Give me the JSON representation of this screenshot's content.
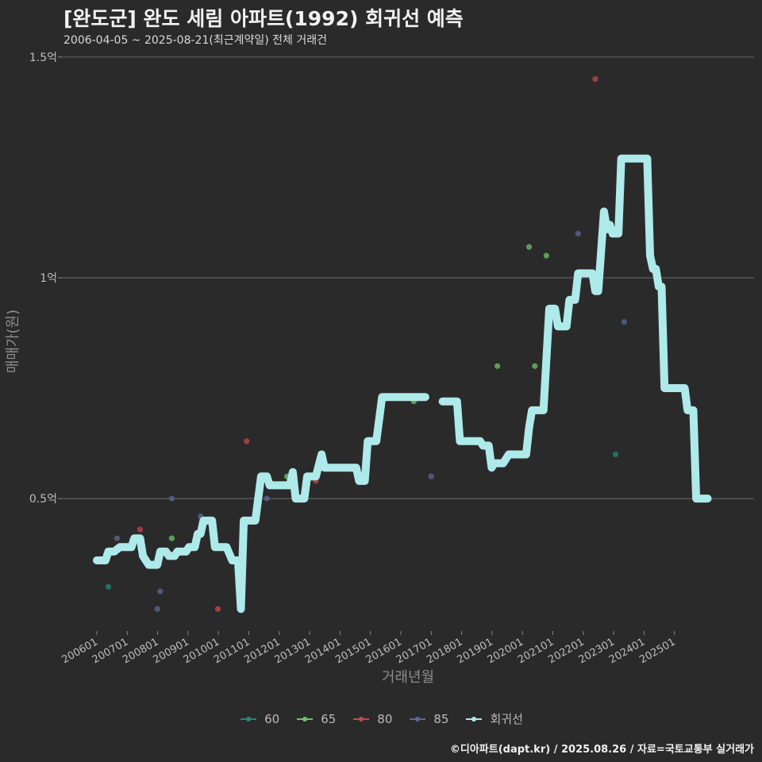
{
  "chart_data": {
    "type": "line",
    "title": "[완도군] 완도 세림 아파트(1992) 회귀선 예측",
    "subtitle": "2006-04-05 ~ 2025-08-21(최근계약일) 전체 거래건",
    "xlabel": "거래년월",
    "ylabel": "매매가(원)",
    "caption": "©디아파트(dapt.kr) / 2025.08.26 / 자료=국토교통부 실거래가",
    "ylim": [
      0.2,
      1.55
    ],
    "xlim": [
      2006.0,
      2026.8
    ],
    "y_ticks": [
      {
        "v": 0.5,
        "label": "0.5억"
      },
      {
        "v": 1.0,
        "label": "1억"
      },
      {
        "v": 1.5,
        "label": "1.5억"
      }
    ],
    "x_ticks": [
      "200601",
      "200701",
      "200801",
      "200901",
      "201001",
      "201101",
      "201201",
      "201301",
      "201401",
      "201501",
      "201601",
      "201701",
      "201801",
      "201901",
      "202001",
      "202101",
      "202201",
      "202301",
      "202401",
      "202501"
    ],
    "legend": [
      {
        "name": "60",
        "color": "#1f8a7a"
      },
      {
        "name": "65",
        "color": "#6cc46a"
      },
      {
        "name": "80",
        "color": "#c8474f"
      },
      {
        "name": "85",
        "color": "#5d6894"
      },
      {
        "name": "회귀선",
        "color": "#aeeaea"
      }
    ],
    "points": [
      {
        "x": 2006.4,
        "y": 0.3,
        "s": "60"
      },
      {
        "x": 2006.7,
        "y": 0.41,
        "s": "85"
      },
      {
        "x": 2007.5,
        "y": 0.43,
        "s": "80"
      },
      {
        "x": 2008.1,
        "y": 0.25,
        "s": "85"
      },
      {
        "x": 2008.2,
        "y": 0.29,
        "s": "85"
      },
      {
        "x": 2008.6,
        "y": 0.5,
        "s": "85"
      },
      {
        "x": 2008.6,
        "y": 0.41,
        "s": "65"
      },
      {
        "x": 2009.6,
        "y": 0.46,
        "s": "85"
      },
      {
        "x": 2010.2,
        "y": 0.25,
        "s": "80"
      },
      {
        "x": 2011.1,
        "y": 0.42,
        "s": "85"
      },
      {
        "x": 2011.2,
        "y": 0.63,
        "s": "80"
      },
      {
        "x": 2011.9,
        "y": 0.5,
        "s": "85"
      },
      {
        "x": 2012.6,
        "y": 0.55,
        "s": "65"
      },
      {
        "x": 2013.6,
        "y": 0.54,
        "s": "80"
      },
      {
        "x": 2017.0,
        "y": 0.72,
        "s": "65"
      },
      {
        "x": 2017.6,
        "y": 0.55,
        "s": "85"
      },
      {
        "x": 2019.9,
        "y": 0.8,
        "s": "65"
      },
      {
        "x": 2021.0,
        "y": 1.07,
        "s": "65"
      },
      {
        "x": 2021.2,
        "y": 0.8,
        "s": "65"
      },
      {
        "x": 2021.6,
        "y": 1.05,
        "s": "65"
      },
      {
        "x": 2022.7,
        "y": 1.1,
        "s": "85"
      },
      {
        "x": 2023.3,
        "y": 1.45,
        "s": "80"
      },
      {
        "x": 2024.0,
        "y": 0.6,
        "s": "60"
      },
      {
        "x": 2024.3,
        "y": 0.9,
        "s": "85"
      }
    ],
    "regression": [
      [
        [
          2006.0,
          0.36
        ],
        [
          2006.3,
          0.36
        ],
        [
          2006.4,
          0.38
        ],
        [
          2006.6,
          0.38
        ],
        [
          2006.8,
          0.39
        ],
        [
          2007.2,
          0.39
        ],
        [
          2007.3,
          0.41
        ],
        [
          2007.5,
          0.41
        ],
        [
          2007.6,
          0.37
        ],
        [
          2007.8,
          0.35
        ],
        [
          2008.1,
          0.35
        ],
        [
          2008.2,
          0.38
        ],
        [
          2008.4,
          0.38
        ],
        [
          2008.5,
          0.37
        ],
        [
          2008.7,
          0.37
        ],
        [
          2008.8,
          0.38
        ],
        [
          2009.1,
          0.38
        ],
        [
          2009.2,
          0.39
        ],
        [
          2009.4,
          0.39
        ],
        [
          2009.5,
          0.42
        ],
        [
          2009.6,
          0.42
        ],
        [
          2009.7,
          0.45
        ],
        [
          2010.0,
          0.45
        ],
        [
          2010.1,
          0.39
        ],
        [
          2010.5,
          0.39
        ],
        [
          2010.7,
          0.36
        ],
        [
          2010.9,
          0.36
        ],
        [
          2011.0,
          0.25
        ],
        [
          2011.1,
          0.45
        ],
        [
          2011.5,
          0.45
        ],
        [
          2011.7,
          0.55
        ],
        [
          2011.9,
          0.55
        ],
        [
          2012.0,
          0.53
        ],
        [
          2012.7,
          0.53
        ],
        [
          2012.8,
          0.56
        ],
        [
          2012.9,
          0.5
        ],
        [
          2013.2,
          0.5
        ],
        [
          2013.3,
          0.55
        ],
        [
          2013.6,
          0.55
        ],
        [
          2013.8,
          0.6
        ],
        [
          2013.9,
          0.57
        ],
        [
          2015.0,
          0.57
        ],
        [
          2015.1,
          0.54
        ],
        [
          2015.3,
          0.54
        ],
        [
          2015.4,
          0.63
        ],
        [
          2015.7,
          0.63
        ],
        [
          2015.9,
          0.73
        ],
        [
          2017.4,
          0.73
        ]
      ],
      [
        [
          2018.0,
          0.72
        ],
        [
          2018.5,
          0.72
        ],
        [
          2018.6,
          0.63
        ],
        [
          2019.3,
          0.63
        ],
        [
          2019.4,
          0.62
        ],
        [
          2019.6,
          0.62
        ],
        [
          2019.7,
          0.57
        ],
        [
          2019.8,
          0.58
        ],
        [
          2020.1,
          0.58
        ],
        [
          2020.3,
          0.6
        ],
        [
          2020.9,
          0.6
        ],
        [
          2021.0,
          0.66
        ],
        [
          2021.1,
          0.7
        ],
        [
          2021.5,
          0.7
        ],
        [
          2021.7,
          0.93
        ],
        [
          2021.9,
          0.93
        ],
        [
          2022.0,
          0.89
        ],
        [
          2022.3,
          0.89
        ],
        [
          2022.4,
          0.95
        ],
        [
          2022.6,
          0.95
        ],
        [
          2022.7,
          1.01
        ],
        [
          2023.2,
          1.01
        ],
        [
          2023.3,
          0.97
        ],
        [
          2023.4,
          0.97
        ],
        [
          2023.6,
          1.15
        ],
        [
          2023.7,
          1.11
        ],
        [
          2023.8,
          1.12
        ],
        [
          2023.9,
          1.1
        ],
        [
          2024.1,
          1.1
        ],
        [
          2024.2,
          1.27
        ],
        [
          2025.1,
          1.27
        ],
        [
          2025.2,
          1.05
        ],
        [
          2025.3,
          1.02
        ],
        [
          2025.4,
          1.02
        ],
        [
          2025.5,
          0.98
        ],
        [
          2025.6,
          0.98
        ],
        [
          2025.7,
          0.75
        ],
        [
          2026.4,
          0.75
        ],
        [
          2026.5,
          0.7
        ],
        [
          2026.7,
          0.7
        ],
        [
          2026.8,
          0.5
        ],
        [
          2027.2,
          0.5
        ]
      ]
    ]
  }
}
